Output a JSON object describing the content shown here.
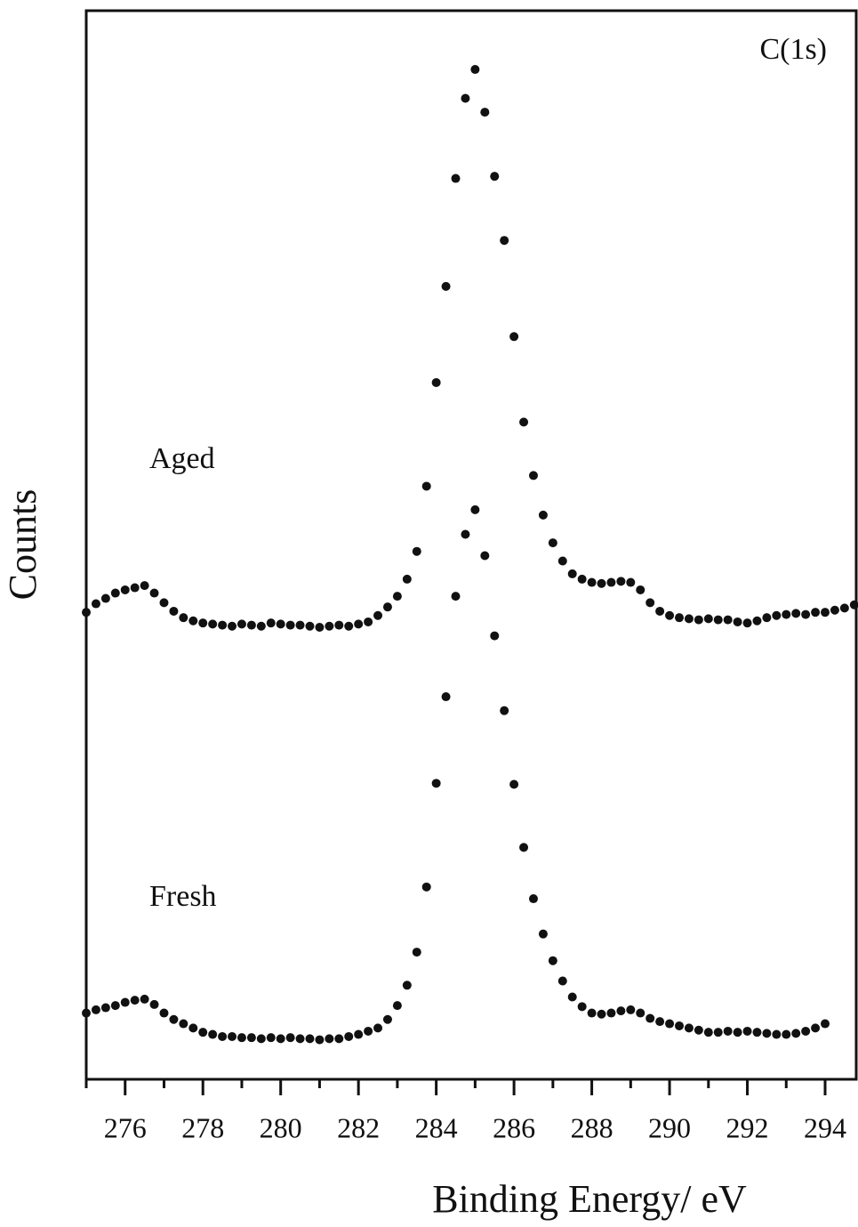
{
  "chart_data": {
    "type": "scatter",
    "xlabel": "Binding Energy/ eV",
    "ylabel": "Counts",
    "annotations": [
      "C(1s)",
      "Aged",
      "Fresh"
    ],
    "xlim": [
      275,
      294.8
    ],
    "ylim": [
      0,
      100
    ],
    "xticks": [
      276,
      278,
      280,
      282,
      284,
      286,
      288,
      290,
      292,
      294
    ],
    "xminorticks": [
      275,
      277,
      279,
      281,
      283,
      285,
      287,
      289,
      291,
      293
    ],
    "series": [
      {
        "name": "Aged",
        "color": "#111111",
        "x": [
          275,
          275.25,
          275.5,
          275.75,
          276,
          276.25,
          276.5,
          276.75,
          277,
          277.25,
          277.5,
          277.75,
          278,
          278.25,
          278.5,
          278.75,
          279,
          279.25,
          279.5,
          279.75,
          280,
          280.25,
          280.5,
          280.75,
          281,
          281.25,
          281.5,
          281.75,
          282,
          282.25,
          282.5,
          282.75,
          283,
          283.25,
          283.5,
          283.75,
          284,
          284.25,
          284.5,
          284.75,
          285,
          285.25,
          285.5,
          285.75,
          286,
          286.25,
          286.5,
          286.75,
          287,
          287.25,
          287.5,
          287.75,
          288,
          288.25,
          288.5,
          288.75,
          289,
          289.25,
          289.5,
          289.75,
          290,
          290.25,
          290.5,
          290.75,
          291,
          291.25,
          291.5,
          291.75,
          292,
          292.25,
          292.5,
          292.75,
          293,
          293.25,
          293.5,
          293.75,
          294,
          294.25,
          294.5,
          294.75
        ],
        "values": [
          43.7,
          44.5,
          45.0,
          45.5,
          45.8,
          46.0,
          46.2,
          45.5,
          44.6,
          43.8,
          43.2,
          42.9,
          42.7,
          42.6,
          42.5,
          42.4,
          42.6,
          42.5,
          42.4,
          42.7,
          42.6,
          42.5,
          42.5,
          42.4,
          42.3,
          42.4,
          42.5,
          42.4,
          42.6,
          42.8,
          43.4,
          44.2,
          45.2,
          46.8,
          49.4,
          55.5,
          65.2,
          74.2,
          84.3,
          91.8,
          94.5,
          90.5,
          84.5,
          78.5,
          69.5,
          61.5,
          56.5,
          52.8,
          50.2,
          48.5,
          47.3,
          46.8,
          46.5,
          46.4,
          46.5,
          46.6,
          46.5,
          45.8,
          44.6,
          43.8,
          43.4,
          43.2,
          43.1,
          43.0,
          43.1,
          43.0,
          43.0,
          42.8,
          42.7,
          42.9,
          43.2,
          43.4,
          43.5,
          43.6,
          43.5,
          43.7,
          43.7,
          43.9,
          44.1,
          44.4
        ]
      },
      {
        "name": "Fresh",
        "color": "#111111",
        "x": [
          275,
          275.25,
          275.5,
          275.75,
          276,
          276.25,
          276.5,
          276.75,
          277,
          277.25,
          277.5,
          277.75,
          278,
          278.25,
          278.5,
          278.75,
          279,
          279.25,
          279.5,
          279.75,
          280,
          280.25,
          280.5,
          280.75,
          281,
          281.25,
          281.5,
          281.75,
          282,
          282.25,
          282.5,
          282.75,
          283,
          283.25,
          283.5,
          283.75,
          284,
          284.25,
          284.5,
          284.75,
          285,
          285.25,
          285.5,
          285.75,
          286,
          286.25,
          286.5,
          286.75,
          287,
          287.25,
          287.5,
          287.75,
          288,
          288.25,
          288.5,
          288.75,
          289,
          289.25,
          289.5,
          289.75,
          290,
          290.25,
          290.5,
          290.75,
          291,
          291.25,
          291.5,
          291.75,
          292,
          292.25,
          292.5,
          292.75,
          293,
          293.25,
          293.5,
          293.75,
          294
        ],
        "values": [
          6.2,
          6.5,
          6.7,
          6.9,
          7.2,
          7.4,
          7.5,
          7.0,
          6.2,
          5.6,
          5.2,
          4.8,
          4.4,
          4.2,
          4.0,
          4.0,
          3.9,
          3.9,
          3.8,
          3.9,
          3.8,
          3.9,
          3.8,
          3.8,
          3.7,
          3.8,
          3.8,
          4.0,
          4.2,
          4.5,
          4.8,
          5.6,
          6.9,
          8.8,
          11.9,
          18.0,
          27.7,
          35.8,
          45.2,
          51.0,
          53.3,
          49.0,
          41.5,
          34.5,
          27.6,
          21.7,
          16.9,
          13.6,
          11.1,
          9.2,
          7.7,
          6.8,
          6.2,
          6.1,
          6.2,
          6.4,
          6.5,
          6.2,
          5.7,
          5.4,
          5.2,
          5.0,
          4.8,
          4.6,
          4.4,
          4.4,
          4.5,
          4.4,
          4.5,
          4.4,
          4.3,
          4.2,
          4.2,
          4.3,
          4.5,
          4.8,
          5.2
        ]
      }
    ]
  }
}
